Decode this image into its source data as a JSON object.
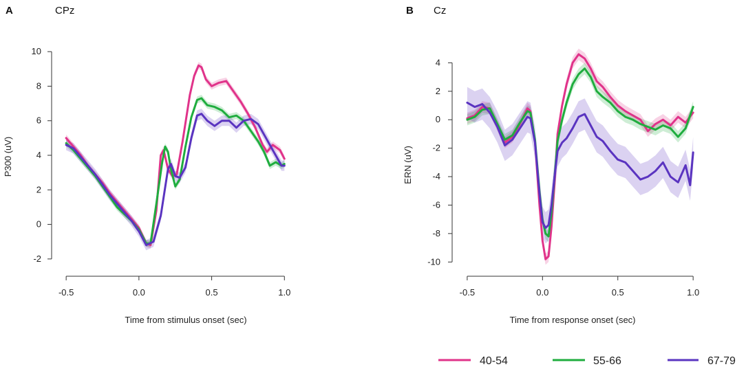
{
  "chart_data": [
    {
      "type": "line",
      "panel_letter": "A",
      "title": "CPz",
      "xlabel": "Time from stimulus onset (sec)",
      "ylabel": "P300 (uV)",
      "xlim": [
        -0.6,
        1.15
      ],
      "ylim": [
        -3.0,
        11.0
      ],
      "xticks": [
        -0.5,
        0.0,
        0.5,
        1.0
      ],
      "xtick_labels": [
        "-0.5",
        "0.0",
        "0.5",
        "1.0"
      ],
      "yticks": [
        -2,
        0,
        2,
        4,
        6,
        8,
        10
      ],
      "ytick_labels": [
        "-2",
        "0",
        "2",
        "4",
        "6",
        "8",
        "10"
      ],
      "series": [
        {
          "name": "40-54",
          "color": "#e0338a",
          "band": 0.2,
          "points": [
            [
              -0.5,
              5.0
            ],
            [
              -0.45,
              4.5
            ],
            [
              -0.4,
              4.0
            ],
            [
              -0.35,
              3.4
            ],
            [
              -0.3,
              2.9
            ],
            [
              -0.25,
              2.4
            ],
            [
              -0.2,
              1.8
            ],
            [
              -0.15,
              1.3
            ],
            [
              -0.1,
              0.8
            ],
            [
              -0.05,
              0.3
            ],
            [
              0.0,
              -0.2
            ],
            [
              0.05,
              -1.1
            ],
            [
              0.08,
              -1.2
            ],
            [
              0.12,
              0.8
            ],
            [
              0.15,
              4.0
            ],
            [
              0.17,
              4.3
            ],
            [
              0.2,
              3.2
            ],
            [
              0.23,
              2.8
            ],
            [
              0.26,
              2.9
            ],
            [
              0.3,
              4.8
            ],
            [
              0.35,
              7.5
            ],
            [
              0.38,
              8.6
            ],
            [
              0.41,
              9.2
            ],
            [
              0.43,
              9.1
            ],
            [
              0.46,
              8.4
            ],
            [
              0.5,
              8.0
            ],
            [
              0.55,
              8.2
            ],
            [
              0.6,
              8.3
            ],
            [
              0.65,
              7.7
            ],
            [
              0.7,
              7.1
            ],
            [
              0.75,
              6.4
            ],
            [
              0.8,
              5.6
            ],
            [
              0.85,
              4.6
            ],
            [
              0.88,
              4.2
            ],
            [
              0.92,
              4.6
            ],
            [
              0.97,
              4.3
            ],
            [
              1.0,
              3.8
            ]
          ]
        },
        {
          "name": "55-66",
          "color": "#1fad3e",
          "band": 0.2,
          "points": [
            [
              -0.5,
              4.7
            ],
            [
              -0.45,
              4.3
            ],
            [
              -0.4,
              3.8
            ],
            [
              -0.35,
              3.3
            ],
            [
              -0.3,
              2.8
            ],
            [
              -0.25,
              2.2
            ],
            [
              -0.2,
              1.6
            ],
            [
              -0.15,
              1.0
            ],
            [
              -0.1,
              0.6
            ],
            [
              -0.05,
              0.2
            ],
            [
              0.0,
              -0.3
            ],
            [
              0.05,
              -1.1
            ],
            [
              0.08,
              -1.1
            ],
            [
              0.12,
              1.2
            ],
            [
              0.16,
              3.6
            ],
            [
              0.18,
              4.5
            ],
            [
              0.2,
              4.2
            ],
            [
              0.22,
              3.2
            ],
            [
              0.25,
              2.2
            ],
            [
              0.28,
              2.6
            ],
            [
              0.32,
              4.5
            ],
            [
              0.36,
              6.2
            ],
            [
              0.4,
              7.2
            ],
            [
              0.43,
              7.3
            ],
            [
              0.47,
              6.9
            ],
            [
              0.52,
              6.8
            ],
            [
              0.57,
              6.6
            ],
            [
              0.62,
              6.2
            ],
            [
              0.67,
              6.3
            ],
            [
              0.72,
              6.0
            ],
            [
              0.77,
              5.4
            ],
            [
              0.82,
              4.8
            ],
            [
              0.86,
              4.2
            ],
            [
              0.9,
              3.4
            ],
            [
              0.94,
              3.6
            ],
            [
              0.98,
              3.4
            ],
            [
              1.0,
              3.5
            ]
          ]
        },
        {
          "name": "67-79",
          "color": "#5a34c0",
          "band": 0.3,
          "points": [
            [
              -0.5,
              4.6
            ],
            [
              -0.45,
              4.4
            ],
            [
              -0.4,
              3.9
            ],
            [
              -0.35,
              3.4
            ],
            [
              -0.3,
              2.9
            ],
            [
              -0.25,
              2.3
            ],
            [
              -0.2,
              1.7
            ],
            [
              -0.15,
              1.2
            ],
            [
              -0.1,
              0.7
            ],
            [
              -0.05,
              0.2
            ],
            [
              0.0,
              -0.4
            ],
            [
              0.05,
              -1.2
            ],
            [
              0.1,
              -1.0
            ],
            [
              0.15,
              0.5
            ],
            [
              0.2,
              3.2
            ],
            [
              0.22,
              3.5
            ],
            [
              0.25,
              2.8
            ],
            [
              0.28,
              2.7
            ],
            [
              0.32,
              3.3
            ],
            [
              0.36,
              5.0
            ],
            [
              0.4,
              6.3
            ],
            [
              0.43,
              6.4
            ],
            [
              0.47,
              6.0
            ],
            [
              0.52,
              5.7
            ],
            [
              0.57,
              6.0
            ],
            [
              0.62,
              6.0
            ],
            [
              0.67,
              5.6
            ],
            [
              0.72,
              6.0
            ],
            [
              0.77,
              6.1
            ],
            [
              0.82,
              5.8
            ],
            [
              0.86,
              5.2
            ],
            [
              0.9,
              4.6
            ],
            [
              0.94,
              4.0
            ],
            [
              0.98,
              3.4
            ],
            [
              1.0,
              3.4
            ]
          ]
        }
      ]
    },
    {
      "type": "line",
      "panel_letter": "B",
      "title": "Cz",
      "xlabel": "Time from response onset (sec)",
      "ylabel": "ERN (uV)",
      "xlim": [
        -0.6,
        1.15
      ],
      "ylim": [
        -11.0,
        6.0
      ],
      "xticks": [
        -0.5,
        0.0,
        0.5,
        1.0
      ],
      "xtick_labels": [
        "-0.5",
        "0.0",
        "0.5",
        "1.0"
      ],
      "yticks": [
        -10,
        -8,
        -6,
        -4,
        -2,
        0,
        2,
        4
      ],
      "ytick_labels": [
        "-10",
        "-8",
        "-6",
        "-4",
        "-2",
        "0",
        "2",
        "4"
      ],
      "series": [
        {
          "name": "40-54",
          "color": "#e0338a",
          "band": 0.4,
          "points": [
            [
              -0.5,
              0.1
            ],
            [
              -0.45,
              0.3
            ],
            [
              -0.4,
              0.9
            ],
            [
              -0.35,
              0.8
            ],
            [
              -0.3,
              -0.4
            ],
            [
              -0.25,
              -1.6
            ],
            [
              -0.2,
              -1.2
            ],
            [
              -0.15,
              -0.3
            ],
            [
              -0.1,
              0.8
            ],
            [
              -0.08,
              0.6
            ],
            [
              -0.05,
              -1.5
            ],
            [
              -0.02,
              -6.0
            ],
            [
              0.0,
              -8.5
            ],
            [
              0.02,
              -9.8
            ],
            [
              0.04,
              -9.6
            ],
            [
              0.06,
              -7.5
            ],
            [
              0.08,
              -4.5
            ],
            [
              0.1,
              -1.0
            ],
            [
              0.13,
              1.0
            ],
            [
              0.16,
              2.5
            ],
            [
              0.2,
              4.0
            ],
            [
              0.24,
              4.6
            ],
            [
              0.28,
              4.3
            ],
            [
              0.32,
              3.6
            ],
            [
              0.36,
              2.7
            ],
            [
              0.4,
              2.3
            ],
            [
              0.45,
              1.6
            ],
            [
              0.5,
              1.0
            ],
            [
              0.55,
              0.6
            ],
            [
              0.6,
              0.3
            ],
            [
              0.65,
              0.0
            ],
            [
              0.7,
              -0.8
            ],
            [
              0.75,
              -0.3
            ],
            [
              0.8,
              0.0
            ],
            [
              0.85,
              -0.4
            ],
            [
              0.9,
              0.2
            ],
            [
              0.95,
              -0.2
            ],
            [
              1.0,
              0.5
            ]
          ]
        },
        {
          "name": "55-66",
          "color": "#1fad3e",
          "band": 0.4,
          "points": [
            [
              -0.5,
              0.0
            ],
            [
              -0.45,
              0.2
            ],
            [
              -0.4,
              0.7
            ],
            [
              -0.35,
              0.8
            ],
            [
              -0.3,
              -0.3
            ],
            [
              -0.25,
              -1.4
            ],
            [
              -0.2,
              -1.1
            ],
            [
              -0.15,
              -0.2
            ],
            [
              -0.1,
              0.6
            ],
            [
              -0.08,
              0.5
            ],
            [
              -0.05,
              -1.4
            ],
            [
              -0.02,
              -5.0
            ],
            [
              0.0,
              -7.0
            ],
            [
              0.02,
              -8.0
            ],
            [
              0.04,
              -8.2
            ],
            [
              0.06,
              -6.5
            ],
            [
              0.08,
              -4.0
            ],
            [
              0.1,
              -1.5
            ],
            [
              0.13,
              0.0
            ],
            [
              0.16,
              1.2
            ],
            [
              0.2,
              2.5
            ],
            [
              0.24,
              3.2
            ],
            [
              0.28,
              3.6
            ],
            [
              0.32,
              3.0
            ],
            [
              0.36,
              2.0
            ],
            [
              0.4,
              1.6
            ],
            [
              0.45,
              1.2
            ],
            [
              0.5,
              0.6
            ],
            [
              0.55,
              0.2
            ],
            [
              0.6,
              0.0
            ],
            [
              0.65,
              -0.3
            ],
            [
              0.7,
              -0.5
            ],
            [
              0.75,
              -0.7
            ],
            [
              0.8,
              -0.4
            ],
            [
              0.85,
              -0.6
            ],
            [
              0.9,
              -1.2
            ],
            [
              0.95,
              -0.6
            ],
            [
              1.0,
              0.9
            ]
          ]
        },
        {
          "name": "67-79",
          "color": "#5a34c0",
          "band": 1.1,
          "points": [
            [
              -0.5,
              1.2
            ],
            [
              -0.45,
              0.9
            ],
            [
              -0.4,
              1.1
            ],
            [
              -0.35,
              0.5
            ],
            [
              -0.3,
              -0.5
            ],
            [
              -0.25,
              -1.8
            ],
            [
              -0.2,
              -1.4
            ],
            [
              -0.15,
              -0.6
            ],
            [
              -0.1,
              0.2
            ],
            [
              -0.08,
              0.1
            ],
            [
              -0.05,
              -1.6
            ],
            [
              -0.02,
              -5.2
            ],
            [
              0.0,
              -7.2
            ],
            [
              0.02,
              -7.6
            ],
            [
              0.04,
              -7.4
            ],
            [
              0.06,
              -6.0
            ],
            [
              0.08,
              -4.0
            ],
            [
              0.1,
              -2.2
            ],
            [
              0.13,
              -1.6
            ],
            [
              0.16,
              -1.3
            ],
            [
              0.2,
              -0.6
            ],
            [
              0.24,
              0.2
            ],
            [
              0.28,
              0.4
            ],
            [
              0.32,
              -0.4
            ],
            [
              0.36,
              -1.2
            ],
            [
              0.4,
              -1.5
            ],
            [
              0.45,
              -2.2
            ],
            [
              0.5,
              -2.8
            ],
            [
              0.55,
              -3.0
            ],
            [
              0.6,
              -3.6
            ],
            [
              0.65,
              -4.2
            ],
            [
              0.7,
              -4.0
            ],
            [
              0.75,
              -3.6
            ],
            [
              0.8,
              -3.0
            ],
            [
              0.85,
              -4.0
            ],
            [
              0.9,
              -4.4
            ],
            [
              0.95,
              -3.2
            ],
            [
              0.98,
              -4.6
            ],
            [
              1.0,
              -2.3
            ]
          ]
        }
      ]
    }
  ],
  "legend": [
    {
      "label": "40-54",
      "color": "#e0338a"
    },
    {
      "label": "55-66",
      "color": "#1fad3e"
    },
    {
      "label": "67-79",
      "color": "#5a34c0"
    }
  ]
}
